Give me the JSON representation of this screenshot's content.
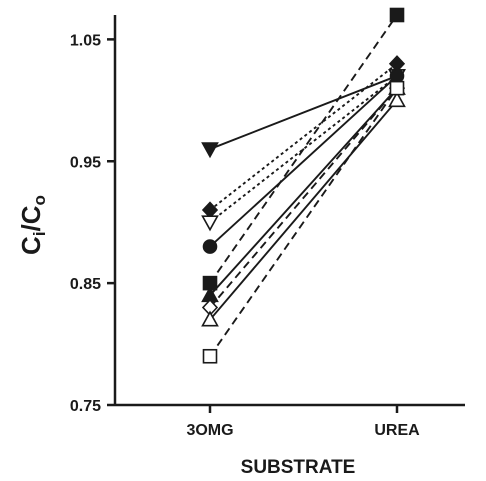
{
  "chart_data": {
    "type": "line",
    "xlabel": "SUBSTRATE",
    "ylabel_main": "C",
    "ylabel_sub1": "i",
    "ylabel_slash": "/C",
    "ylabel_sub2": "o",
    "categories": [
      "3OMG",
      "UREA"
    ],
    "ylim": [
      0.75,
      1.07
    ],
    "yticks": [
      0.75,
      0.85,
      0.95,
      1.05
    ],
    "ytick_labels": [
      "0.75",
      "0.85",
      "0.95",
      "1.05"
    ],
    "grid": false,
    "series": [
      {
        "values": [
          0.96,
          1.02
        ],
        "marker": "triangle-down",
        "filled": true,
        "line_style": "solid"
      },
      {
        "values": [
          0.91,
          1.03
        ],
        "marker": "diamond",
        "filled": true,
        "line_style": "dotted"
      },
      {
        "values": [
          0.9,
          1.02
        ],
        "marker": "triangle-down",
        "filled": false,
        "line_style": "dotted"
      },
      {
        "values": [
          0.88,
          1.02
        ],
        "marker": "circle",
        "filled": true,
        "line_style": "solid"
      },
      {
        "values": [
          0.85,
          1.07
        ],
        "marker": "square",
        "filled": true,
        "line_style": "dashed"
      },
      {
        "values": [
          0.84,
          1.01
        ],
        "marker": "triangle",
        "filled": true,
        "line_style": "solid"
      },
      {
        "values": [
          0.83,
          1.01
        ],
        "marker": "diamond",
        "filled": false,
        "line_style": "dashed"
      },
      {
        "values": [
          0.82,
          1.0
        ],
        "marker": "triangle",
        "filled": false,
        "line_style": "solid"
      },
      {
        "values": [
          0.79,
          1.01
        ],
        "marker": "square",
        "filled": false,
        "line_style": "dashed"
      }
    ]
  }
}
